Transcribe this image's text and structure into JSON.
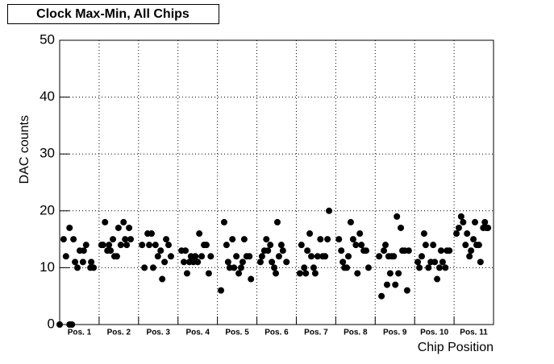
{
  "chart_data": {
    "type": "scatter",
    "title": "Clock Max-Min, All Chips",
    "x_label": "Chip Position",
    "y_label": "DAC counts",
    "xlim": [
      0,
      11
    ],
    "ylim": [
      0,
      50
    ],
    "yticks": [
      0,
      10,
      20,
      30,
      40,
      50
    ],
    "xticks": [
      {
        "value": 0.5,
        "label": "Pos. 1"
      },
      {
        "value": 1.5,
        "label": "Pos. 2"
      },
      {
        "value": 2.5,
        "label": "Pos. 3"
      },
      {
        "value": 3.5,
        "label": "Pos. 4"
      },
      {
        "value": 4.5,
        "label": "Pos. 5"
      },
      {
        "value": 5.5,
        "label": "Pos. 6"
      },
      {
        "value": 6.5,
        "label": "Pos. 7"
      },
      {
        "value": 7.5,
        "label": "Pos. 8"
      },
      {
        "value": 8.5,
        "label": "Pos. 9"
      },
      {
        "value": 9.5,
        "label": "Pos. 10"
      },
      {
        "value": 10.5,
        "label": "Pos. 11"
      }
    ],
    "grid": true,
    "series": [
      {
        "color": "#000000",
        "x": [
          0,
          0.1,
          0.16,
          0.25,
          0.25,
          0.31,
          0.35,
          0.39,
          0.45,
          0.51,
          0.59,
          0.61,
          0.67,
          0.78,
          0.8,
          0.86,
          1.06,
          1.1,
          1.15,
          1.21,
          1.25,
          1.29,
          1.35,
          1.39,
          1.45,
          1.49,
          1.55,
          1.62,
          1.66,
          1.7,
          1.76,
          1.8,
          2.09,
          2.15,
          2.23,
          2.27,
          2.33,
          2.37,
          2.43,
          2.49,
          2.56,
          2.6,
          2.66,
          2.7,
          2.76,
          2.82,
          3.09,
          3.15,
          3.19,
          3.23,
          3.29,
          3.33,
          3.39,
          3.44,
          3.5,
          3.54,
          3.6,
          3.66,
          3.72,
          3.78,
          3.83,
          4.09,
          4.17,
          4.23,
          4.27,
          4.31,
          4.38,
          4.42,
          4.48,
          4.54,
          4.6,
          4.64,
          4.68,
          4.74,
          4.81,
          4.85,
          5.09,
          5.13,
          5.19,
          5.24,
          5.28,
          5.34,
          5.38,
          5.44,
          5.48,
          5.52,
          5.56,
          5.62,
          5.66,
          5.75,
          6.09,
          6.13,
          6.2,
          6.24,
          6.28,
          6.34,
          6.38,
          6.44,
          6.48,
          6.54,
          6.61,
          6.67,
          6.73,
          6.79,
          6.83,
          7.08,
          7.14,
          7.18,
          7.22,
          7.28,
          7.32,
          7.38,
          7.44,
          7.51,
          7.55,
          7.61,
          7.65,
          7.71,
          7.77,
          7.83,
          8.1,
          8.16,
          8.22,
          8.26,
          8.3,
          8.34,
          8.38,
          8.42,
          8.47,
          8.51,
          8.55,
          8.59,
          8.65,
          8.69,
          8.75,
          8.81,
          8.85,
          9.08,
          9.12,
          9.18,
          9.24,
          9.28,
          9.35,
          9.41,
          9.47,
          9.51,
          9.57,
          9.63,
          9.67,
          9.71,
          9.78,
          9.82,
          9.88,
          10.06,
          10.12,
          10.18,
          10.23,
          10.29,
          10.33,
          10.39,
          10.43,
          10.49,
          10.53,
          10.57,
          10.63,
          10.67,
          10.74,
          10.78,
          10.82,
          10.86
        ],
        "values": [
          0,
          15,
          12,
          17,
          0,
          0,
          15,
          11,
          10,
          13,
          11,
          13,
          14,
          10,
          11,
          10,
          14,
          14,
          18,
          13,
          14,
          13,
          15,
          12,
          12,
          17,
          14,
          18,
          15,
          14,
          17,
          15,
          14,
          10,
          16,
          14,
          16,
          10,
          14,
          12,
          13,
          8,
          11,
          15,
          14,
          12,
          13,
          11,
          13,
          9,
          11,
          12,
          11,
          12,
          11,
          16,
          12,
          14,
          14,
          9,
          12,
          6,
          18,
          14,
          11,
          10,
          15,
          10,
          12,
          9,
          10,
          11,
          15,
          12,
          12,
          8,
          11,
          12,
          13,
          15,
          13,
          14,
          11,
          10,
          9,
          18,
          12,
          14,
          13,
          11,
          9,
          14,
          10,
          9,
          13,
          16,
          12,
          10,
          9,
          12,
          15,
          12,
          12,
          15,
          20,
          15,
          13,
          11,
          10,
          10,
          12,
          18,
          15,
          14,
          9,
          16,
          14,
          13,
          13,
          10,
          12,
          5,
          13,
          14,
          7,
          12,
          9,
          12,
          12,
          7,
          19,
          9,
          17,
          13,
          13,
          6,
          13,
          11,
          10,
          12,
          16,
          14,
          10,
          11,
          14,
          11,
          8,
          10,
          13,
          11,
          10,
          13,
          13,
          16,
          17,
          19,
          18,
          14,
          16,
          12,
          13,
          15,
          18,
          14,
          14,
          11,
          17,
          18,
          17,
          17
        ]
      }
    ]
  }
}
